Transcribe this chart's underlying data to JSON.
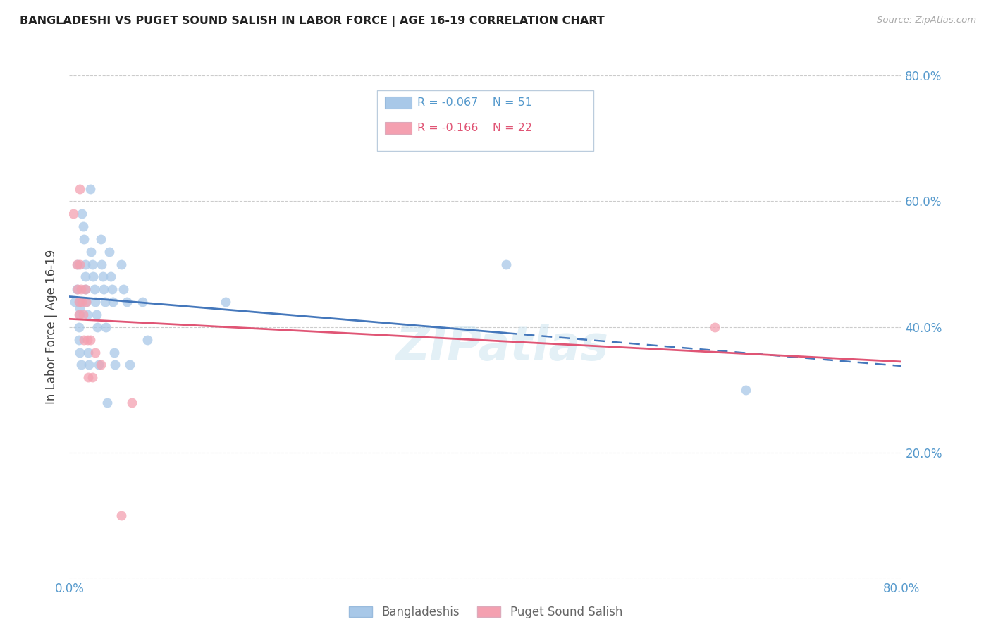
{
  "title": "BANGLADESHI VS PUGET SOUND SALISH IN LABOR FORCE | AGE 16-19 CORRELATION CHART",
  "source": "Source: ZipAtlas.com",
  "ylabel": "In Labor Force | Age 16-19",
  "xlim": [
    0.0,
    0.8
  ],
  "ylim": [
    0.0,
    0.8
  ],
  "legend_blue_r": "-0.067",
  "legend_blue_n": "51",
  "legend_pink_r": "-0.166",
  "legend_pink_n": "22",
  "legend_label_blue": "Bangladeshis",
  "legend_label_pink": "Puget Sound Salish",
  "blue_color": "#a8c8e8",
  "blue_line_color": "#4477bb",
  "pink_color": "#f4a0b0",
  "pink_line_color": "#e05575",
  "axis_tick_color": "#5599cc",
  "watermark": "ZIPatlas",
  "blue_scatter": [
    [
      0.005,
      0.44
    ],
    [
      0.007,
      0.46
    ],
    [
      0.008,
      0.5
    ],
    [
      0.009,
      0.4
    ],
    [
      0.009,
      0.38
    ],
    [
      0.01,
      0.44
    ],
    [
      0.01,
      0.43
    ],
    [
      0.01,
      0.42
    ],
    [
      0.01,
      0.36
    ],
    [
      0.011,
      0.34
    ],
    [
      0.012,
      0.58
    ],
    [
      0.013,
      0.56
    ],
    [
      0.014,
      0.54
    ],
    [
      0.015,
      0.5
    ],
    [
      0.015,
      0.48
    ],
    [
      0.015,
      0.46
    ],
    [
      0.016,
      0.44
    ],
    [
      0.017,
      0.42
    ],
    [
      0.018,
      0.36
    ],
    [
      0.019,
      0.34
    ],
    [
      0.02,
      0.62
    ],
    [
      0.021,
      0.52
    ],
    [
      0.022,
      0.5
    ],
    [
      0.023,
      0.48
    ],
    [
      0.024,
      0.46
    ],
    [
      0.025,
      0.44
    ],
    [
      0.026,
      0.42
    ],
    [
      0.027,
      0.4
    ],
    [
      0.028,
      0.34
    ],
    [
      0.03,
      0.54
    ],
    [
      0.031,
      0.5
    ],
    [
      0.032,
      0.48
    ],
    [
      0.033,
      0.46
    ],
    [
      0.034,
      0.44
    ],
    [
      0.035,
      0.4
    ],
    [
      0.036,
      0.28
    ],
    [
      0.038,
      0.52
    ],
    [
      0.04,
      0.48
    ],
    [
      0.041,
      0.46
    ],
    [
      0.042,
      0.44
    ],
    [
      0.043,
      0.36
    ],
    [
      0.044,
      0.34
    ],
    [
      0.05,
      0.5
    ],
    [
      0.052,
      0.46
    ],
    [
      0.055,
      0.44
    ],
    [
      0.058,
      0.34
    ],
    [
      0.07,
      0.44
    ],
    [
      0.075,
      0.38
    ],
    [
      0.15,
      0.44
    ],
    [
      0.42,
      0.5
    ],
    [
      0.65,
      0.3
    ]
  ],
  "pink_scatter": [
    [
      0.004,
      0.58
    ],
    [
      0.007,
      0.5
    ],
    [
      0.008,
      0.46
    ],
    [
      0.009,
      0.44
    ],
    [
      0.009,
      0.42
    ],
    [
      0.01,
      0.62
    ],
    [
      0.01,
      0.5
    ],
    [
      0.011,
      0.46
    ],
    [
      0.012,
      0.44
    ],
    [
      0.013,
      0.42
    ],
    [
      0.014,
      0.38
    ],
    [
      0.015,
      0.46
    ],
    [
      0.016,
      0.44
    ],
    [
      0.017,
      0.38
    ],
    [
      0.018,
      0.32
    ],
    [
      0.02,
      0.38
    ],
    [
      0.022,
      0.32
    ],
    [
      0.025,
      0.36
    ],
    [
      0.03,
      0.34
    ],
    [
      0.05,
      0.1
    ],
    [
      0.06,
      0.28
    ],
    [
      0.62,
      0.4
    ]
  ]
}
